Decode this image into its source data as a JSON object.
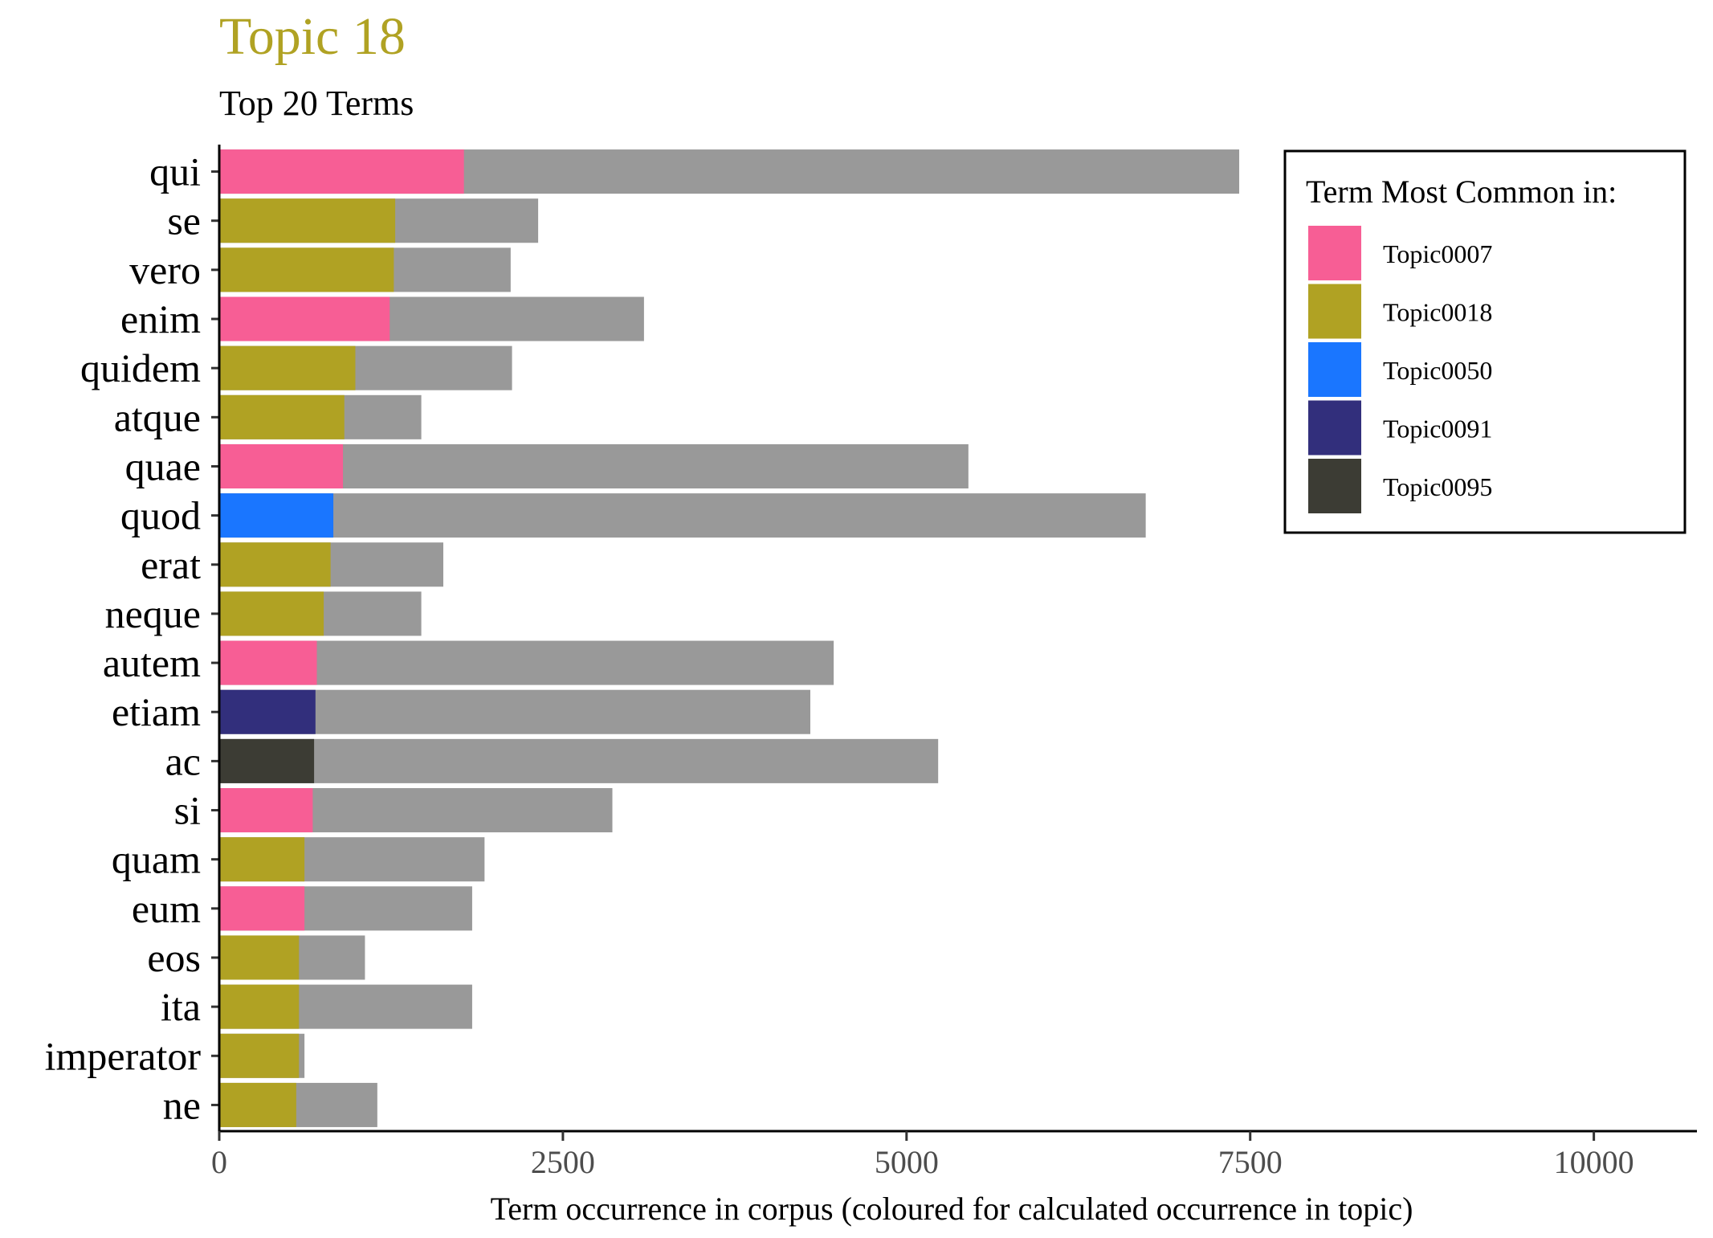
{
  "chart_data": {
    "type": "bar",
    "orientation": "horizontal",
    "title": "Topic 18",
    "subtitle": "Top 20 Terms",
    "xlabel": "Term occurrence in corpus (coloured for calculated occurrence in topic)",
    "ylabel": "",
    "xlim": [
      0,
      10750
    ],
    "xticks": [
      0,
      2500,
      5000,
      7500,
      10000
    ],
    "xtick_labels": [
      "0",
      "2500",
      "5000",
      "7500",
      "10000"
    ],
    "grid": false,
    "background_color": "#999999",
    "categories": [
      "qui",
      "se",
      "vero",
      "enim",
      "quidem",
      "atque",
      "quae",
      "quod",
      "erat",
      "neque",
      "autem",
      "etiam",
      "ac",
      "si",
      "quam",
      "eum",
      "eos",
      "ita",
      "imperator",
      "ne"
    ],
    "corpus_values": [
      7420,
      2320,
      2120,
      3090,
      2130,
      1470,
      5450,
      6740,
      1630,
      1470,
      4470,
      4300,
      5230,
      2860,
      1930,
      1840,
      1060,
      1840,
      620,
      1150
    ],
    "topic_values": [
      1780,
      1280,
      1270,
      1240,
      990,
      910,
      900,
      830,
      810,
      760,
      710,
      700,
      690,
      680,
      620,
      620,
      580,
      580,
      580,
      560
    ],
    "topic_assignment": [
      "Topic0007",
      "Topic0018",
      "Topic0018",
      "Topic0007",
      "Topic0018",
      "Topic0018",
      "Topic0007",
      "Topic0050",
      "Topic0018",
      "Topic0018",
      "Topic0007",
      "Topic0091",
      "Topic0095",
      "Topic0007",
      "Topic0018",
      "Topic0007",
      "Topic0018",
      "Topic0018",
      "Topic0018",
      "Topic0018"
    ],
    "legend": {
      "title": "Term Most Common in:",
      "placement": "top-right",
      "entries": [
        {
          "name": "Topic0007",
          "color": "#F75E95"
        },
        {
          "name": "Topic0018",
          "color": "#B0A223"
        },
        {
          "name": "Topic0050",
          "color": "#1A76FF"
        },
        {
          "name": "Topic0091",
          "color": "#322F7C"
        },
        {
          "name": "Topic0095",
          "color": "#3C3C34"
        }
      ]
    },
    "title_color": "#B0A223"
  }
}
